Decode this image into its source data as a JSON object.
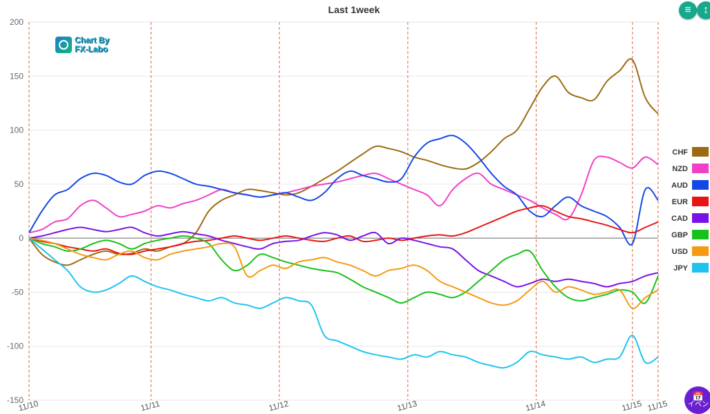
{
  "chart_data": {
    "type": "line",
    "title": "Last 1week",
    "ylim": [
      -150,
      200
    ],
    "yticks": [
      200,
      150,
      100,
      50,
      0,
      -50,
      -100,
      -150
    ],
    "xticks": [
      "11/10",
      "11/11",
      "11/12",
      "11/13",
      "11/14",
      "11/15",
      "11/15"
    ],
    "grid": true,
    "legend_position": "right",
    "x": [
      0,
      1,
      2,
      3,
      4,
      5,
      6,
      7,
      8,
      9,
      10,
      11,
      12,
      13,
      14,
      15,
      16,
      17,
      18,
      19,
      20,
      21,
      22,
      23,
      24,
      25,
      26,
      27,
      28,
      29,
      30,
      31,
      32,
      33,
      34,
      35,
      36,
      37,
      38,
      39,
      40,
      41,
      42,
      43,
      44,
      45,
      46,
      47,
      48,
      49
    ],
    "series": [
      {
        "name": "CHF",
        "color": "#9c6a12",
        "values": [
          0,
          -15,
          -22,
          -25,
          -20,
          -15,
          -12,
          -15,
          -14,
          -10,
          -12,
          -8,
          -5,
          5,
          25,
          35,
          40,
          45,
          44,
          42,
          40,
          42,
          48,
          55,
          62,
          70,
          78,
          85,
          83,
          80,
          75,
          72,
          68,
          65,
          64,
          70,
          80,
          92,
          100,
          120,
          140,
          150,
          135,
          130,
          128,
          145,
          155,
          165,
          130,
          115
        ]
      },
      {
        "name": "NZD",
        "color": "#f23fc8",
        "values": [
          5,
          8,
          15,
          18,
          30,
          35,
          28,
          20,
          22,
          25,
          30,
          28,
          32,
          35,
          40,
          45,
          42,
          40,
          38,
          40,
          42,
          45,
          48,
          50,
          52,
          55,
          58,
          60,
          55,
          50,
          45,
          40,
          30,
          45,
          55,
          60,
          50,
          45,
          40,
          35,
          28,
          22,
          18,
          40,
          72,
          75,
          70,
          65,
          75,
          68
        ]
      },
      {
        "name": "AUD",
        "color": "#1448e6",
        "values": [
          5,
          25,
          40,
          45,
          55,
          60,
          58,
          52,
          50,
          58,
          62,
          60,
          55,
          50,
          48,
          45,
          42,
          40,
          38,
          40,
          42,
          38,
          35,
          42,
          55,
          62,
          58,
          55,
          52,
          55,
          75,
          88,
          92,
          95,
          88,
          75,
          60,
          48,
          40,
          25,
          20,
          30,
          38,
          30,
          25,
          20,
          10,
          -5,
          45,
          35
        ]
      },
      {
        "name": "EUR",
        "color": "#e81414",
        "values": [
          0,
          -3,
          -5,
          -8,
          -10,
          -12,
          -10,
          -14,
          -15,
          -12,
          -10,
          -8,
          -5,
          -3,
          -2,
          0,
          2,
          0,
          -2,
          0,
          2,
          0,
          -2,
          -3,
          0,
          2,
          -3,
          -2,
          0,
          -2,
          0,
          2,
          3,
          2,
          5,
          10,
          15,
          20,
          25,
          28,
          30,
          25,
          20,
          18,
          15,
          12,
          8,
          5,
          10,
          15
        ]
      },
      {
        "name": "CAD",
        "color": "#7a12e8",
        "values": [
          0,
          2,
          5,
          8,
          10,
          8,
          6,
          8,
          10,
          5,
          2,
          4,
          6,
          4,
          2,
          -2,
          -5,
          -8,
          -10,
          -5,
          -3,
          -2,
          2,
          5,
          3,
          -2,
          2,
          5,
          -5,
          0,
          -2,
          -5,
          -8,
          -10,
          -20,
          -30,
          -35,
          -40,
          -45,
          -42,
          -38,
          -40,
          -38,
          -40,
          -42,
          -45,
          -42,
          -40,
          -35,
          -32
        ]
      },
      {
        "name": "GBP",
        "color": "#17c11a",
        "values": [
          0,
          -5,
          -8,
          -12,
          -10,
          -5,
          -2,
          -5,
          -10,
          -5,
          -2,
          0,
          2,
          0,
          -5,
          -20,
          -30,
          -25,
          -15,
          -18,
          -22,
          -25,
          -28,
          -30,
          -32,
          -38,
          -45,
          -50,
          -55,
          -60,
          -55,
          -50,
          -52,
          -55,
          -50,
          -40,
          -30,
          -20,
          -15,
          -12,
          -30,
          -45,
          -55,
          -58,
          -55,
          -52,
          -48,
          -50,
          -60,
          -35
        ]
      },
      {
        "name": "USD",
        "color": "#f59a12",
        "values": [
          0,
          -2,
          -5,
          -10,
          -15,
          -18,
          -20,
          -15,
          -12,
          -18,
          -20,
          -15,
          -12,
          -10,
          -8,
          -5,
          -8,
          -35,
          -30,
          -25,
          -28,
          -22,
          -20,
          -18,
          -22,
          -25,
          -30,
          -35,
          -30,
          -28,
          -25,
          -30,
          -40,
          -45,
          -50,
          -55,
          -60,
          -62,
          -58,
          -48,
          -40,
          -50,
          -45,
          -48,
          -52,
          -50,
          -48,
          -65,
          -55,
          -48
        ]
      },
      {
        "name": "JPY",
        "color": "#1ec4ee",
        "values": [
          0,
          -10,
          -20,
          -30,
          -45,
          -50,
          -48,
          -42,
          -35,
          -40,
          -45,
          -48,
          -52,
          -55,
          -58,
          -55,
          -60,
          -62,
          -65,
          -60,
          -55,
          -58,
          -62,
          -90,
          -95,
          -100,
          -105,
          -108,
          -110,
          -112,
          -108,
          -110,
          -105,
          -108,
          -110,
          -115,
          -118,
          -120,
          -115,
          -105,
          -108,
          -110,
          -112,
          -110,
          -115,
          -112,
          -110,
          -90,
          -115,
          -110
        ]
      }
    ],
    "vlines_at": [
      0,
      9.5,
      19.5,
      29.5,
      39.5,
      47,
      49
    ]
  },
  "logo": {
    "line1": "Chart By",
    "line2": "FX-Labo"
  },
  "controls": {
    "collapse_icon": "≡",
    "expand_icon": "↕"
  },
  "event_button": {
    "icon": "📅",
    "label": "イベン"
  }
}
